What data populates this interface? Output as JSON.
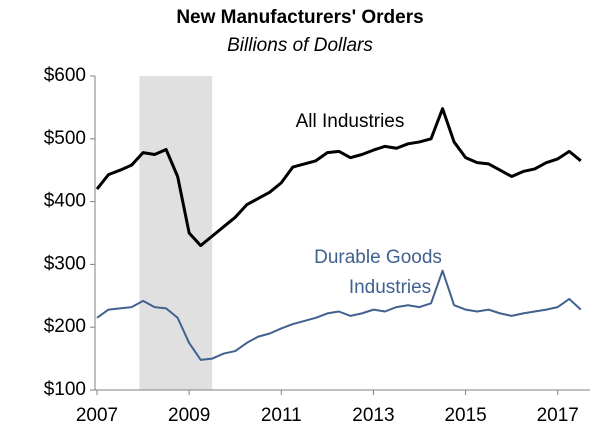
{
  "chart_data": {
    "type": "line",
    "title": "New Manufacturers' Orders",
    "subtitle": "Billions of Dollars",
    "x": [
      2007,
      2007.25,
      2007.5,
      2007.75,
      2008,
      2008.25,
      2008.5,
      2008.75,
      2009,
      2009.25,
      2009.5,
      2009.75,
      2010,
      2010.25,
      2010.5,
      2010.75,
      2011,
      2011.25,
      2011.5,
      2011.75,
      2012,
      2012.25,
      2012.5,
      2012.75,
      2013,
      2013.25,
      2013.5,
      2013.75,
      2014,
      2014.25,
      2014.5,
      2014.75,
      2015,
      2015.25,
      2015.5,
      2015.75,
      2016,
      2016.25,
      2016.5,
      2016.75,
      2017,
      2017.25,
      2017.5
    ],
    "series": [
      {
        "color": "#000000",
        "values": [
          420,
          443,
          450,
          458,
          478,
          475,
          483,
          440,
          350,
          330,
          345,
          360,
          375,
          395,
          405,
          415,
          430,
          455,
          460,
          465,
          478,
          480,
          470,
          475,
          482,
          488,
          485,
          492,
          495,
          500,
          548,
          495,
          470,
          462,
          460,
          450,
          440,
          448,
          452,
          462,
          468,
          480,
          465
        ]
      },
      {
        "color": "#41618f",
        "values": [
          215,
          228,
          230,
          232,
          242,
          232,
          230,
          215,
          175,
          148,
          150,
          158,
          162,
          175,
          185,
          190,
          198,
          205,
          210,
          215,
          222,
          225,
          218,
          222,
          228,
          225,
          232,
          235,
          232,
          238,
          290,
          235,
          228,
          225,
          228,
          222,
          218,
          222,
          225,
          228,
          232,
          245,
          228
        ]
      }
    ],
    "annotations": [
      {
        "lines": [
          "All Industries"
        ],
        "color": "#000000"
      },
      {
        "lines": [
          "Durable Goods",
          "Industries"
        ],
        "color": "#41618f"
      }
    ],
    "shaded_region": {
      "x": [
        2007.92,
        2009.5
      ],
      "color": "#e0e0e0"
    },
    "xlim": [
      2007,
      2017.7
    ],
    "xticks": [
      2007,
      2009,
      2011,
      2013,
      2015,
      2017
    ],
    "ylim": [
      100,
      600
    ],
    "yticks": [
      {
        "value": 100,
        "label": "$100"
      },
      {
        "value": 200,
        "label": "$200"
      },
      {
        "value": 300,
        "label": "$300"
      },
      {
        "value": 400,
        "label": "$400"
      },
      {
        "value": 500,
        "label": "$500"
      },
      {
        "value": 600,
        "label": "$600"
      }
    ]
  }
}
